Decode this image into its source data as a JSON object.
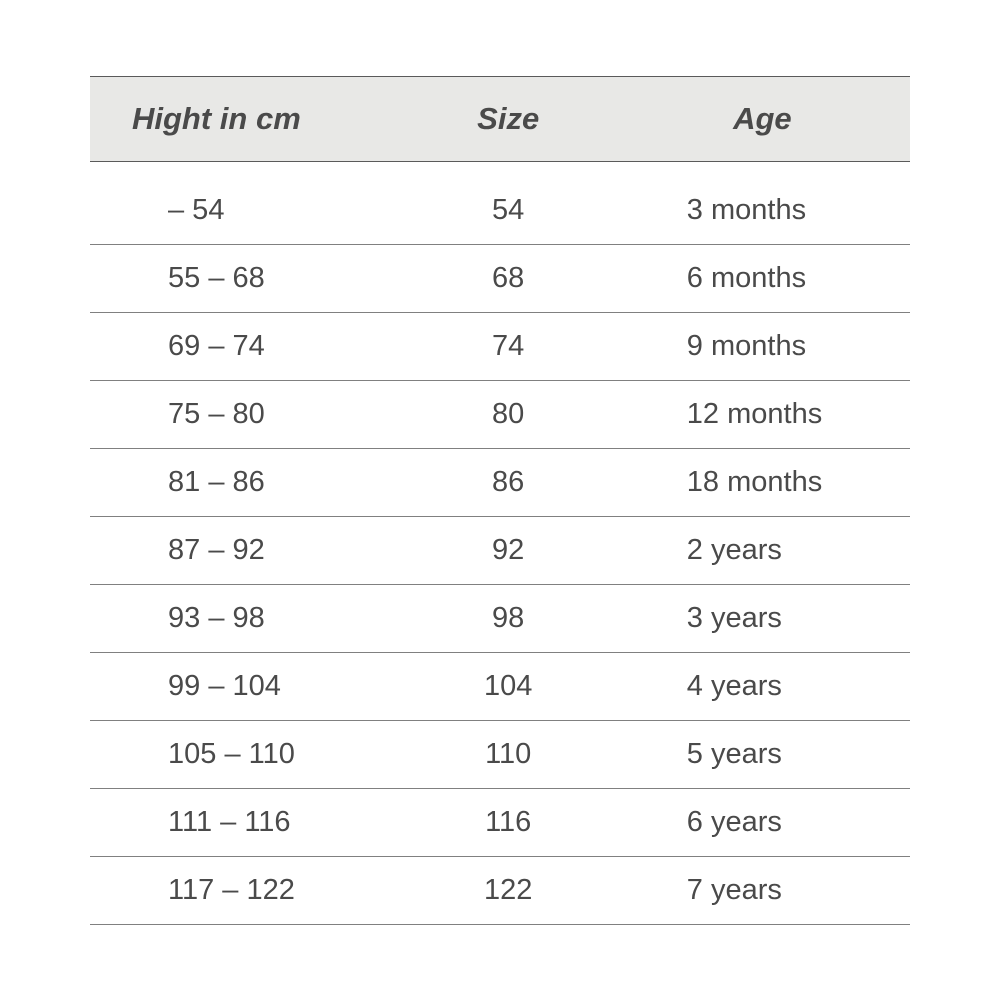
{
  "table": {
    "type": "table",
    "columns": [
      "Hight in cm",
      "Size",
      "Age"
    ],
    "rows": [
      [
        "– 54",
        "54",
        "3 months"
      ],
      [
        "55 – 68",
        "68",
        "6 months"
      ],
      [
        "69 – 74",
        "74",
        "9 months"
      ],
      [
        "75 – 80",
        "80",
        "12 months"
      ],
      [
        "81 – 86",
        "86",
        "18 months"
      ],
      [
        "87 – 92",
        "92",
        "2 years"
      ],
      [
        "93 – 98",
        "98",
        "3 years"
      ],
      [
        "99 – 104",
        "104",
        "4 years"
      ],
      [
        "105 – 110",
        "110",
        "5 years"
      ],
      [
        "111 – 116",
        "116",
        "6 years"
      ],
      [
        "117 – 122",
        "122",
        "7 years"
      ]
    ],
    "header_bg": "#e8e8e6",
    "header_border_color": "#5a5a5a",
    "row_border_color": "#808080",
    "text_color": "#4a4a4a",
    "header_fontsize": 31,
    "body_fontsize": 29,
    "background_color": "#ffffff",
    "col_widths": [
      "38%",
      "26%",
      "36%"
    ]
  }
}
